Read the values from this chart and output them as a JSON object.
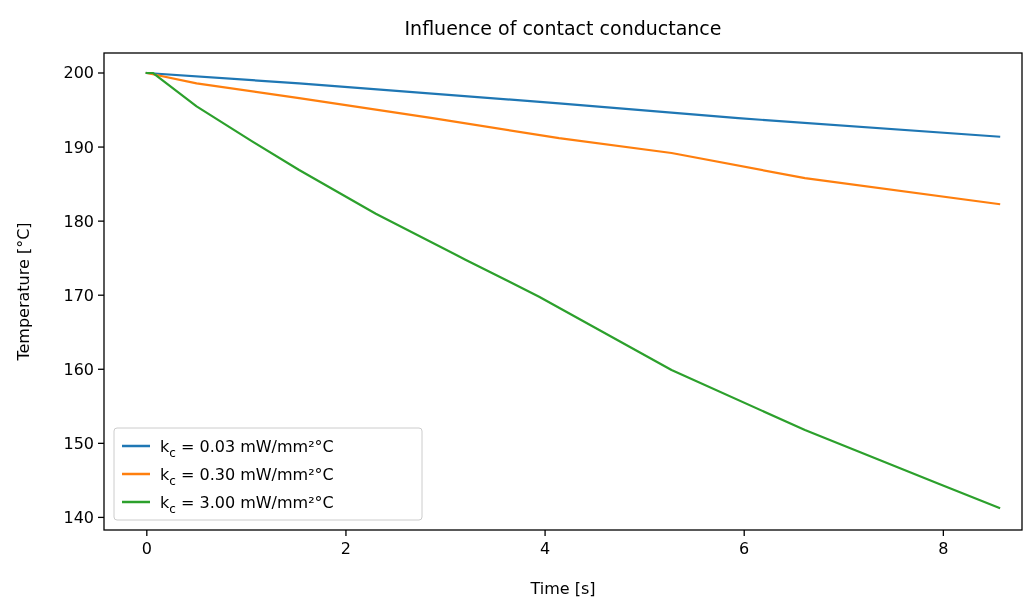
{
  "chart_data": {
    "type": "line",
    "title": "Influence of contact conductance",
    "xlabel": "Time [s]",
    "ylabel": "Temperature [°C]",
    "xlim": [
      -0.43,
      8.79
    ],
    "ylim": [
      138.3,
      202.7
    ],
    "xticks": [
      0,
      2,
      4,
      6,
      8
    ],
    "yticks": [
      140,
      150,
      160,
      170,
      180,
      190,
      200
    ],
    "grid": false,
    "legend": "bottom left",
    "line_style": "solid",
    "marker": "none",
    "series": [
      {
        "name": "k$_{c}$ = 0.03 mW/mm²°C",
        "color": "#1f77b4",
        "x": [
          0,
          1.53,
          4.14,
          5.94,
          8.56
        ],
        "values": [
          200,
          198.6,
          195.9,
          193.9,
          191.4
        ]
      },
      {
        "name": "k$_{c}$ = 0.30 mW/mm²°C",
        "color": "#ff7f0e",
        "x": [
          0,
          0.5,
          1.53,
          2.87,
          4.14,
          5.27,
          6.61,
          8.56
        ],
        "values": [
          200,
          198.6,
          196.6,
          193.9,
          191.2,
          189.2,
          185.8,
          182.3
        ]
      },
      {
        "name": "k$_{c}$ = 3.00 mW/mm²°C",
        "color": "#2ca02c",
        "x": [
          0,
          0.06,
          0.5,
          1.03,
          1.53,
          2.3,
          3.2,
          3.94,
          5.27,
          6.61,
          7.94,
          8.56
        ],
        "values": [
          200,
          200,
          195.5,
          191,
          186.9,
          181,
          174.8,
          169.8,
          159.9,
          151.8,
          144.6,
          141.3
        ]
      }
    ]
  }
}
